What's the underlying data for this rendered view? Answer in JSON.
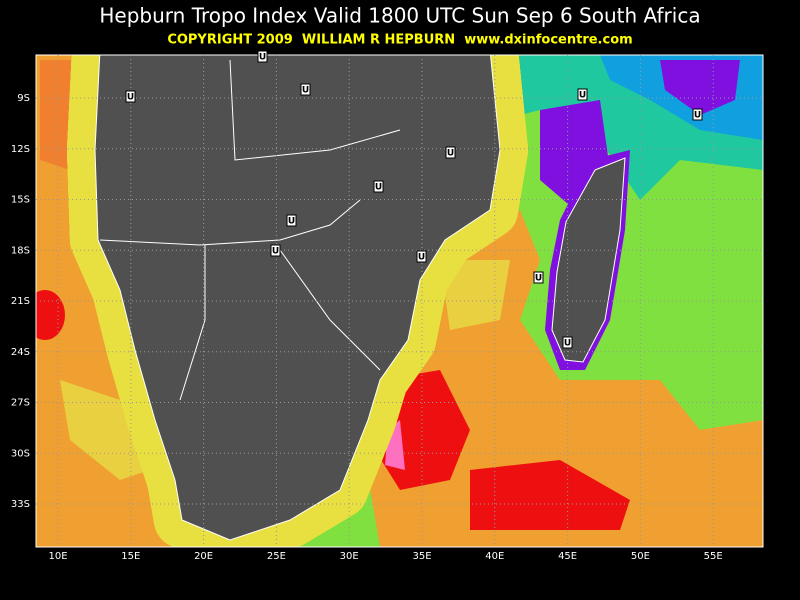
{
  "header": {
    "title": "Hepburn Tropo Index Valid 1800 UTC Sun Sep 6 South Africa",
    "copyright": "COPYRIGHT 2009  WILLIAM R HEPBURN  www.dxinfocentre.com"
  },
  "map": {
    "lat_labels": [
      "9S",
      "12S",
      "15S",
      "18S",
      "21S",
      "24S",
      "27S",
      "30S",
      "33S"
    ],
    "lon_labels": [
      "10E",
      "15E",
      "20E",
      "25E",
      "30E",
      "35E",
      "40E",
      "45E",
      "50E",
      "55E"
    ],
    "markers": [
      "U",
      "U",
      "U",
      "U",
      "U",
      "U",
      "U",
      "U",
      "U",
      "U",
      "U",
      "U"
    ]
  }
}
